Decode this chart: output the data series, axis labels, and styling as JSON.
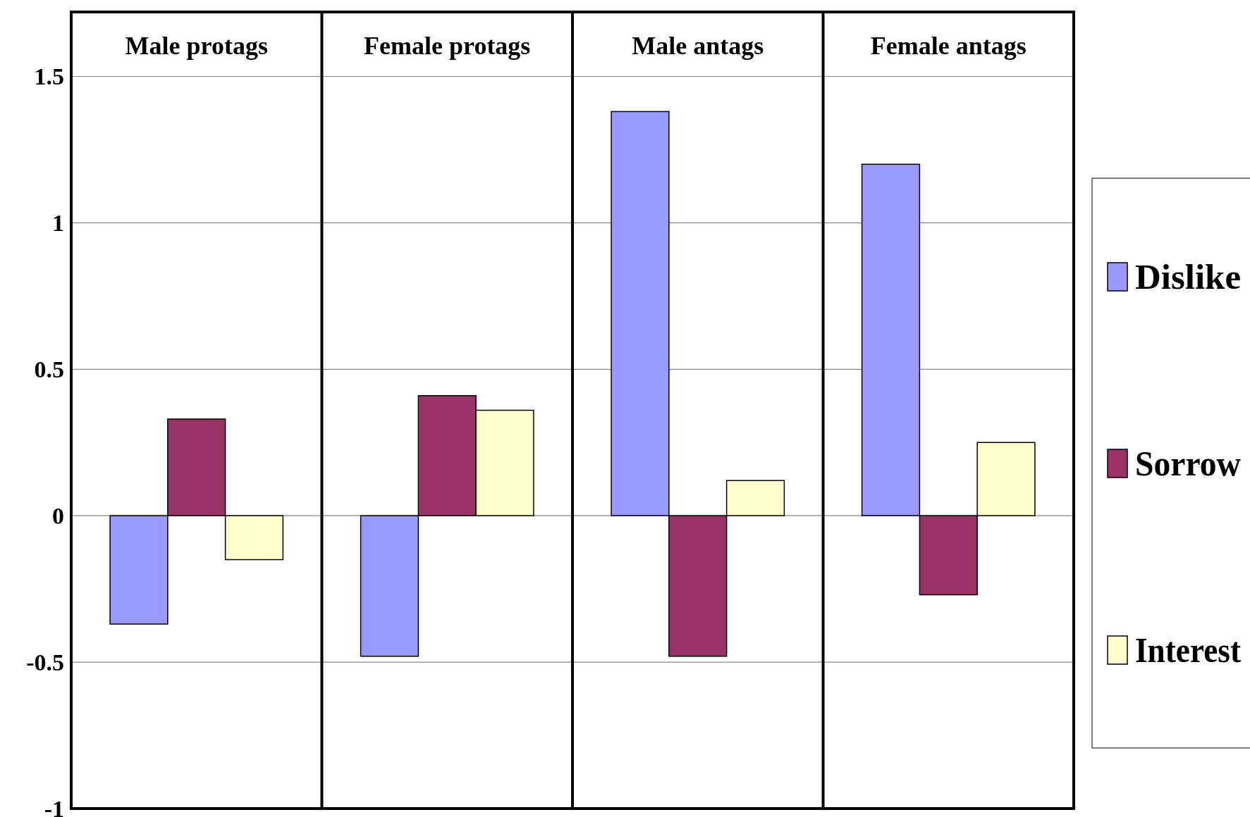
{
  "chart_data": {
    "type": "bar",
    "categories": [
      "Male protags",
      "Female protags",
      "Male antags",
      "Female antags"
    ],
    "series": [
      {
        "name": "Dislike",
        "color": "#9999ff",
        "values": [
          -0.37,
          -0.48,
          1.38,
          1.2
        ]
      },
      {
        "name": "Sorrow",
        "color": "#993366",
        "values": [
          0.33,
          0.41,
          -0.48,
          -0.27
        ]
      },
      {
        "name": "Interest",
        "color": "#ffffcc",
        "values": [
          -0.15,
          0.36,
          0.12,
          0.25
        ]
      }
    ],
    "ylim": [
      -1,
      1.72
    ],
    "yticks": [
      -1,
      -0.5,
      0,
      0.5,
      1,
      1.5
    ],
    "grid": "y",
    "legend": "right"
  }
}
